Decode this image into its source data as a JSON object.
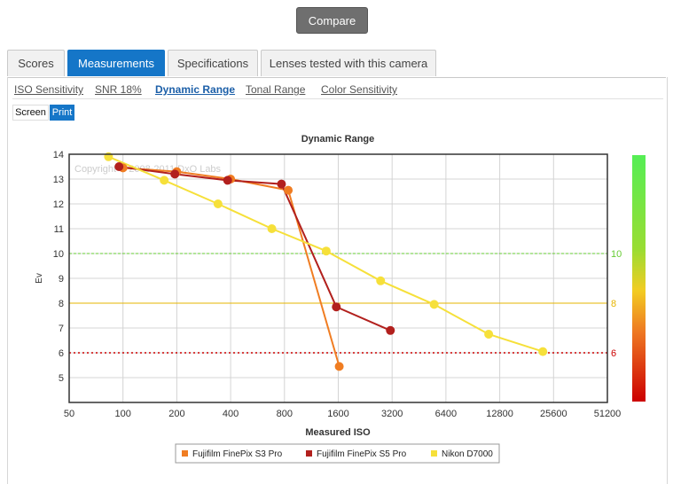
{
  "compare_label": "Compare",
  "tabs": [
    {
      "label": "Scores",
      "active": false
    },
    {
      "label": "Measurements",
      "active": true
    },
    {
      "label": "Specifications",
      "active": false
    },
    {
      "label": "Lenses tested with this camera",
      "active": false
    }
  ],
  "subnav": [
    {
      "label": "ISO Sensitivity",
      "active": false
    },
    {
      "label": "SNR 18%",
      "active": false
    },
    {
      "label": "Dynamic Range",
      "active": true
    },
    {
      "label": "Tonal Range",
      "active": false
    },
    {
      "label": "Color Sensitivity",
      "active": false
    }
  ],
  "toggle": {
    "screen": "Screen",
    "print": "Print"
  },
  "chart_data": {
    "type": "line",
    "title": "Dynamic Range",
    "xlabel": "Measured ISO",
    "ylabel": "Ev",
    "watermark": "Copyright © 2008-2011 DxO Labs",
    "x_scale": "log2",
    "xlim": [
      50,
      51200
    ],
    "ylim": [
      4,
      14
    ],
    "x_ticks": [
      50,
      100,
      200,
      400,
      800,
      1600,
      3200,
      6400,
      12800,
      25600,
      51200
    ],
    "y_ticks": [
      5,
      6,
      7,
      8,
      9,
      10,
      11,
      12,
      13,
      14
    ],
    "grid": true,
    "legend_position": "bottom",
    "reference_lines": [
      {
        "value": 10,
        "label": "10",
        "color": "#66cc33",
        "style": "dashed"
      },
      {
        "value": 8,
        "label": "8",
        "color": "#e6b400",
        "style": "solid"
      },
      {
        "value": 6,
        "label": "6",
        "color": "#cc0000",
        "style": "dotted"
      }
    ],
    "series": [
      {
        "name": "Fujifilm FinePix S3 Pro",
        "color": "#f07d22",
        "points": [
          [
            100,
            13.45
          ],
          [
            200,
            13.3
          ],
          [
            400,
            13.0
          ],
          [
            840,
            12.55
          ],
          [
            1620,
            5.45
          ]
        ]
      },
      {
        "name": "Fujifilm FinePix S5 Pro",
        "color": "#b2201d",
        "points": [
          [
            95,
            13.5
          ],
          [
            195,
            13.2
          ],
          [
            385,
            12.95
          ],
          [
            770,
            12.8
          ],
          [
            1560,
            7.85
          ],
          [
            3130,
            6.9
          ]
        ]
      },
      {
        "name": "Nikon D7000",
        "color": "#f6e03a",
        "points": [
          [
            83,
            13.9
          ],
          [
            170,
            12.95
          ],
          [
            340,
            12.0
          ],
          [
            680,
            11.0
          ],
          [
            1370,
            10.1
          ],
          [
            2760,
            8.9
          ],
          [
            5500,
            7.95
          ],
          [
            11100,
            6.75
          ],
          [
            22300,
            6.05
          ]
        ]
      }
    ],
    "scale_bar": {
      "labels": [
        "10",
        "8",
        "6"
      ],
      "colors": [
        "#66cc33",
        "#e6b400",
        "#cc0000"
      ]
    }
  }
}
